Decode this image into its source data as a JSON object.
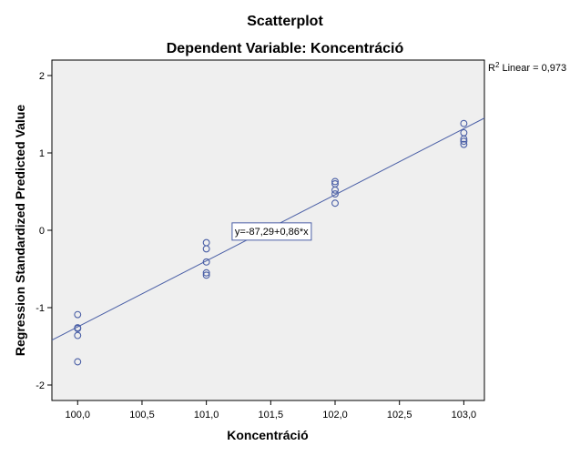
{
  "chart_data": {
    "type": "scatter",
    "title": "Scatterplot",
    "subtitle": "Dependent Variable: Koncentráció",
    "xlabel": "Koncentráció",
    "ylabel": "Regression Standardized Predicted Value",
    "xlim": [
      99.8,
      103.16
    ],
    "ylim": [
      -2.2,
      2.2
    ],
    "x_ticks": [
      100.0,
      100.5,
      101.0,
      101.5,
      102.0,
      102.5,
      103.0
    ],
    "x_tick_labels": [
      "100,0",
      "100,5",
      "101,0",
      "101,5",
      "102,0",
      "102,5",
      "103,0"
    ],
    "y_ticks": [
      2,
      1,
      0,
      -1,
      -2
    ],
    "y_tick_labels": [
      "2",
      "1",
      "0",
      "-1",
      "-2"
    ],
    "grid": false,
    "points": [
      {
        "x": 100.0,
        "y": -1.09
      },
      {
        "x": 100.0,
        "y": -1.26
      },
      {
        "x": 100.0,
        "y": -1.27
      },
      {
        "x": 100.0,
        "y": -1.36
      },
      {
        "x": 100.0,
        "y": -1.7
      },
      {
        "x": 101.0,
        "y": -0.16
      },
      {
        "x": 101.0,
        "y": -0.24
      },
      {
        "x": 101.0,
        "y": -0.41
      },
      {
        "x": 101.0,
        "y": -0.55
      },
      {
        "x": 101.0,
        "y": -0.58
      },
      {
        "x": 102.0,
        "y": 0.63
      },
      {
        "x": 102.0,
        "y": 0.6
      },
      {
        "x": 102.0,
        "y": 0.52
      },
      {
        "x": 102.0,
        "y": 0.47
      },
      {
        "x": 102.0,
        "y": 0.35
      },
      {
        "x": 103.0,
        "y": 1.38
      },
      {
        "x": 103.0,
        "y": 1.26
      },
      {
        "x": 103.0,
        "y": 1.18
      },
      {
        "x": 103.0,
        "y": 1.15
      },
      {
        "x": 103.0,
        "y": 1.11
      }
    ],
    "fit_line": {
      "x": [
        99.8,
        103.16
      ],
      "y": [
        -1.42,
        1.45
      ],
      "equation": "y=-87,29+0,86*x",
      "equation_anchor": {
        "x": 101.2,
        "y": -0.01
      }
    },
    "legend": {
      "position": "top-right",
      "r2_prefix": "R",
      "r2_sup": "2",
      "r2_text": " Linear = 0,973"
    },
    "colors": {
      "plot_bg": "#efefef",
      "marker": "#4a5fa6",
      "line": "#4a5fa6",
      "axis": "#000000"
    }
  }
}
